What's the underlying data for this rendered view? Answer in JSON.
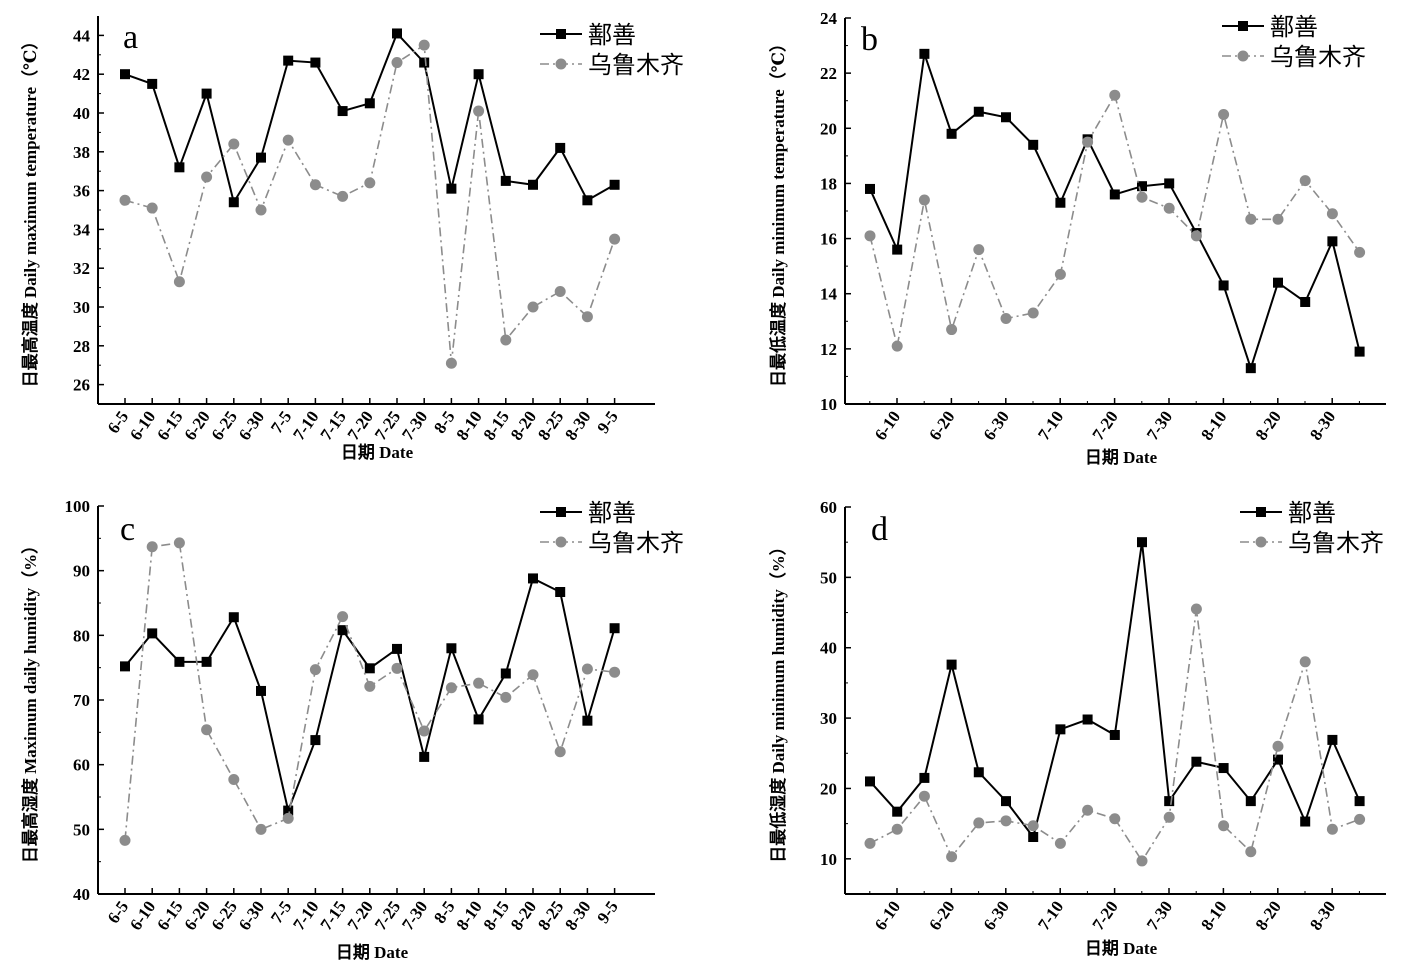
{
  "colors": {
    "city_a": "#000000",
    "city_b": "#8c8c8c"
  },
  "chart_data": [
    {
      "id": "a",
      "type": "line",
      "panel_label": "a",
      "ylabel": "日最高温度 Daily maximum temperature（℃）",
      "xlabel": "日期 Date",
      "ylim": [
        25,
        45
      ],
      "yticks": [
        26,
        28,
        30,
        32,
        34,
        36,
        38,
        40,
        42,
        44
      ],
      "x_ticks": [
        "6-5",
        "6-10",
        "6-15",
        "6-20",
        "6-25",
        "6-30",
        "7-5",
        "7-10",
        "7-15",
        "7-20",
        "7-25",
        "7-30",
        "8-5",
        "8-10",
        "8-15",
        "8-20",
        "8-25",
        "8-30",
        "9-5"
      ],
      "legend_position": "top-right",
      "series": [
        {
          "name": "鄯善",
          "style": "solid-square",
          "values": [
            42.0,
            41.5,
            37.2,
            41.0,
            35.4,
            37.7,
            42.7,
            42.6,
            40.1,
            40.5,
            44.1,
            42.6,
            36.1,
            42.0,
            36.5,
            36.3,
            38.2,
            35.5,
            36.3
          ]
        },
        {
          "name": "乌鲁木齐",
          "style": "dashdot-circle",
          "values": [
            35.5,
            35.1,
            31.3,
            36.7,
            38.4,
            35.0,
            38.6,
            36.3,
            35.7,
            36.4,
            42.6,
            43.5,
            27.1,
            40.1,
            28.3,
            30.0,
            30.8,
            29.5,
            33.5
          ]
        }
      ]
    },
    {
      "id": "b",
      "type": "line",
      "panel_label": "b",
      "ylabel": "日最低温度 Daily minimum temperature（℃）",
      "xlabel": "日期 Date",
      "ylim": [
        10,
        24
      ],
      "yticks": [
        10,
        12,
        14,
        16,
        18,
        20,
        22,
        24
      ],
      "x_ticks": [
        "6-10",
        "6-20",
        "6-30",
        "7-10",
        "7-20",
        "7-30",
        "8-10",
        "8-20",
        "8-30"
      ],
      "legend_position": "top-right",
      "series": [
        {
          "name": "鄯善",
          "style": "solid-square",
          "values": [
            17.8,
            15.6,
            22.7,
            19.8,
            20.6,
            20.4,
            19.4,
            17.3,
            19.6,
            17.6,
            17.9,
            18.0,
            16.2,
            14.3,
            11.3,
            14.4,
            13.7,
            15.9,
            11.9
          ]
        },
        {
          "name": "乌鲁木齐",
          "style": "dashdot-circle",
          "values": [
            16.1,
            12.1,
            17.4,
            12.7,
            15.6,
            13.1,
            13.3,
            14.7,
            19.5,
            21.2,
            17.5,
            17.1,
            16.1,
            20.5,
            16.7,
            16.7,
            18.1,
            16.9,
            15.5
          ]
        }
      ]
    },
    {
      "id": "c",
      "type": "line",
      "panel_label": "c",
      "ylabel": "日最高湿度 Maximum daily humidity（%）",
      "xlabel": "日期 Date",
      "ylim": [
        40,
        100
      ],
      "yticks": [
        40,
        50,
        60,
        70,
        80,
        90,
        100
      ],
      "x_ticks": [
        "6-5",
        "6-10",
        "6-15",
        "6-20",
        "6-25",
        "6-30",
        "7-5",
        "7-10",
        "7-15",
        "7-20",
        "7-25",
        "7-30",
        "8-5",
        "8-10",
        "8-15",
        "8-20",
        "8-25",
        "8-30",
        "9-5"
      ],
      "legend_position": "top-right",
      "series": [
        {
          "name": "鄯善",
          "style": "solid-square",
          "values": [
            75.2,
            80.3,
            75.9,
            75.9,
            82.8,
            71.4,
            52.9,
            63.8,
            80.8,
            74.9,
            77.9,
            61.2,
            78.0,
            67.0,
            74.1,
            88.8,
            86.7,
            66.8,
            81.1
          ]
        },
        {
          "name": "乌鲁木齐",
          "style": "dashdot-circle",
          "values": [
            48.3,
            93.7,
            94.3,
            65.4,
            57.7,
            50.0,
            51.7,
            74.7,
            82.9,
            72.1,
            74.9,
            65.2,
            71.9,
            72.6,
            70.4,
            73.9,
            62.0,
            74.8,
            74.3
          ]
        }
      ]
    },
    {
      "id": "d",
      "type": "line",
      "panel_label": "d",
      "ylabel": "日最低湿度 Daily minimum humidity（%）",
      "xlabel": "日期 Date",
      "ylim": [
        5,
        60
      ],
      "yticks": [
        10,
        20,
        30,
        40,
        50,
        60
      ],
      "x_ticks": [
        "6-10",
        "6-20",
        "6-30",
        "7-10",
        "7-20",
        "7-30",
        "8-10",
        "8-20",
        "8-30"
      ],
      "legend_position": "top-right",
      "series": [
        {
          "name": "鄯善",
          "style": "solid-square",
          "values": [
            21.0,
            16.7,
            21.5,
            37.6,
            22.3,
            18.2,
            13.1,
            28.4,
            29.8,
            27.6,
            55.0,
            18.2,
            23.8,
            22.9,
            18.2,
            24.1,
            15.3,
            26.9,
            18.2
          ]
        },
        {
          "name": "乌鲁木齐",
          "style": "dashdot-circle",
          "values": [
            12.2,
            14.2,
            18.9,
            10.3,
            15.1,
            15.4,
            14.7,
            12.2,
            16.9,
            15.7,
            9.7,
            15.9,
            45.5,
            14.7,
            11.0,
            26.0,
            38.0,
            14.2,
            15.6
          ]
        }
      ]
    }
  ]
}
